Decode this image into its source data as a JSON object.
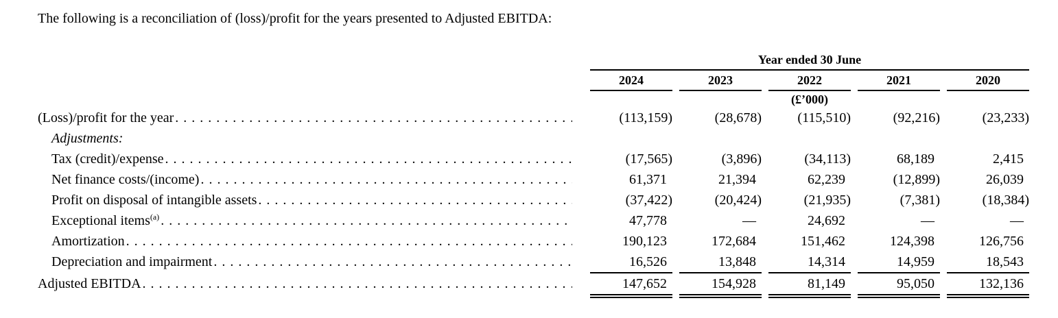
{
  "page": {
    "background_color": "#ffffff",
    "text_color": "#000000"
  },
  "intro": {
    "text": "The following is a reconciliation of (loss)/profit for the years presented to Adjusted EBITDA:"
  },
  "table": {
    "header": {
      "group_label": "Year ended 30 June",
      "year_columns": [
        "2024",
        "2023",
        "2022",
        "2021",
        "2020"
      ],
      "unit_note": "(£’000)",
      "unit_note_column_index": 2
    },
    "rows": [
      {
        "label": "(Loss)/profit for the year",
        "indent": false,
        "italic": false,
        "leaders": true,
        "values": [
          "(113,159)",
          "(28,678)",
          "(115,510)",
          "(92,216)",
          "(23,233)"
        ]
      },
      {
        "label": "Adjustments:",
        "indent": true,
        "italic": true,
        "leaders": false,
        "values": []
      },
      {
        "label": "Tax (credit)/expense",
        "indent": true,
        "italic": false,
        "leaders": true,
        "values": [
          "(17,565)",
          "(3,896)",
          "(34,113)",
          "68,189",
          "2,415"
        ]
      },
      {
        "label": "Net finance costs/(income)",
        "indent": true,
        "italic": false,
        "leaders": true,
        "values": [
          "61,371",
          "21,394",
          "62,239",
          "(12,899)",
          "26,039"
        ]
      },
      {
        "label": "Profit on disposal of intangible assets",
        "indent": true,
        "italic": false,
        "leaders": true,
        "values": [
          "(37,422)",
          "(20,424)",
          "(21,935)",
          "(7,381)",
          "(18,384)"
        ]
      },
      {
        "label": "Exceptional items",
        "sup": "(a)",
        "indent": true,
        "italic": false,
        "leaders": true,
        "values": [
          "47,778",
          "—",
          "24,692",
          "—",
          "—"
        ]
      },
      {
        "label": "Amortization",
        "indent": true,
        "italic": false,
        "leaders": true,
        "values": [
          "190,123",
          "172,684",
          "151,462",
          "124,398",
          "126,756"
        ]
      },
      {
        "label": "Depreciation and impairment",
        "indent": true,
        "italic": false,
        "leaders": true,
        "values": [
          "16,526",
          "13,848",
          "14,314",
          "14,959",
          "18,543"
        ],
        "rule_below": "single"
      },
      {
        "label": "Adjusted EBITDA",
        "indent": false,
        "italic": false,
        "leaders": true,
        "values": [
          "147,652",
          "154,928",
          "81,149",
          "95,050",
          "132,136"
        ],
        "rule_below": "double"
      }
    ]
  }
}
